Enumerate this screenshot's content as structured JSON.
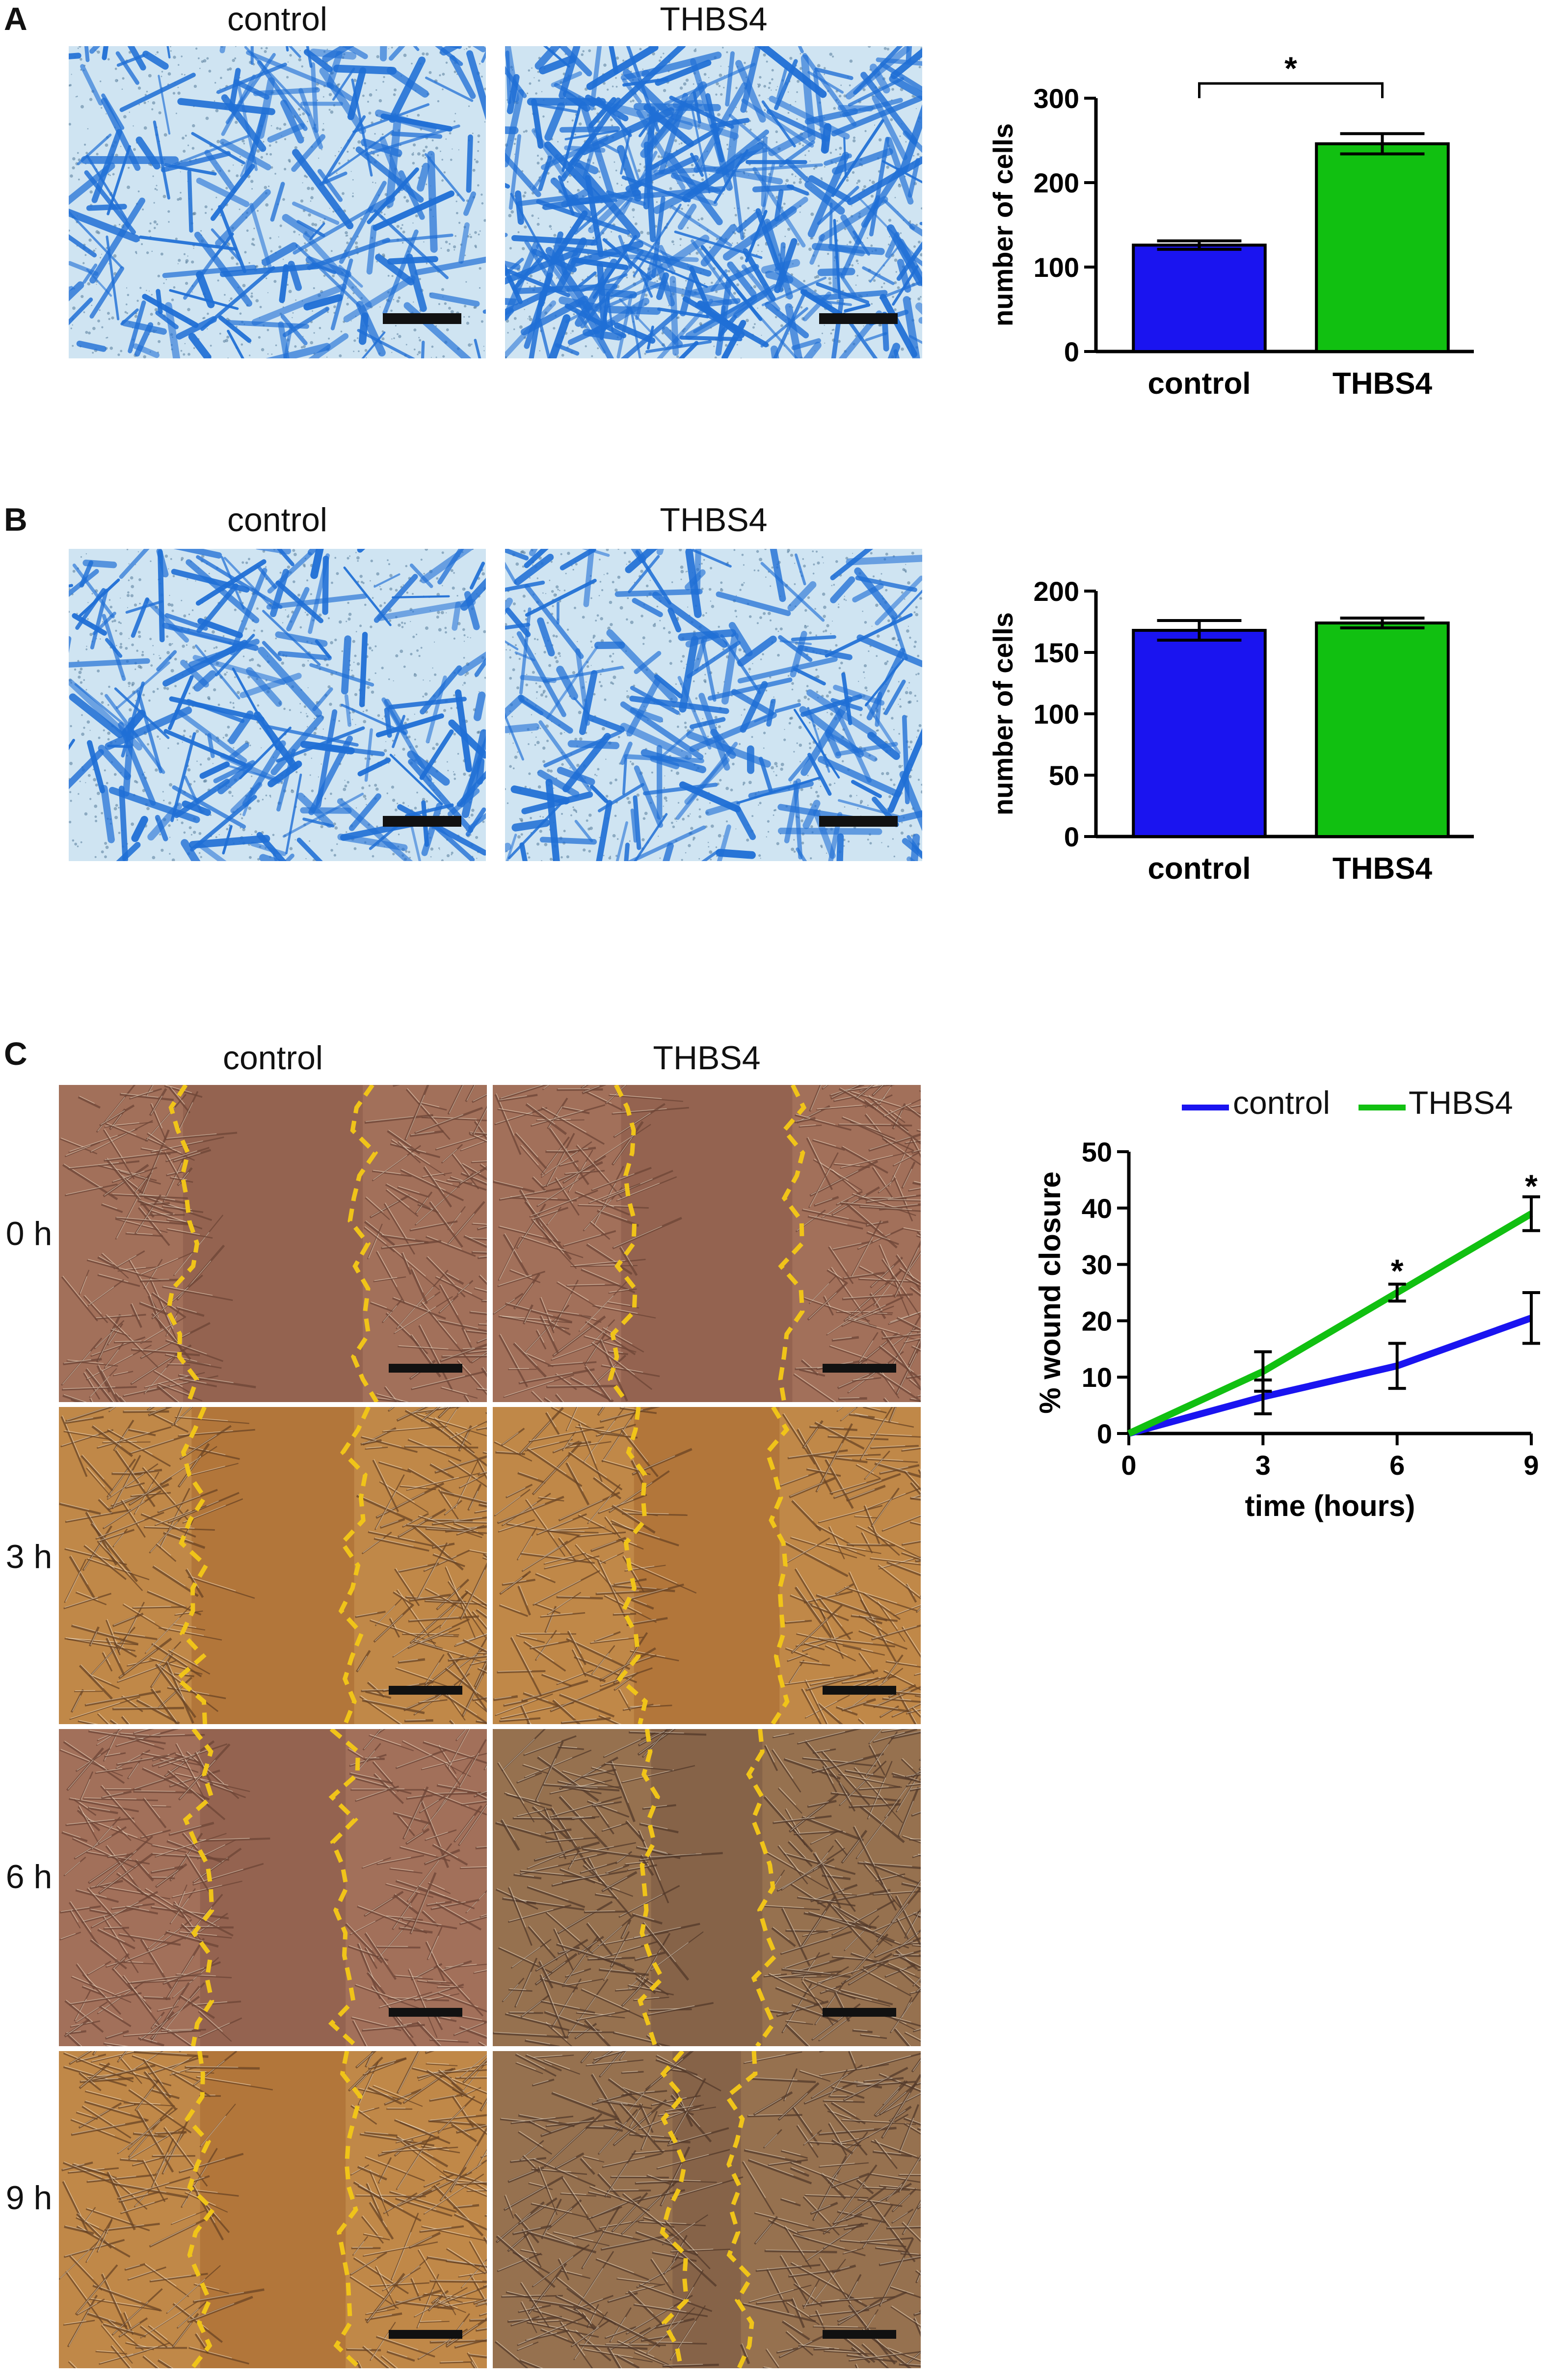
{
  "colors": {
    "control": "#1a14f0",
    "thbs4": "#11c011",
    "stain_blue": "#1f6fd6",
    "stain_bg": "#cfe4f2",
    "wound_line": "#f0c419",
    "brown_dark": "#6e4230",
    "brown_light": "#b4773e",
    "scale_bar": "#111111"
  },
  "panels": {
    "A": {
      "letter": "A",
      "image_titles": [
        "control",
        "THBS4"
      ],
      "chart_y_label": "number of cells"
    },
    "B": {
      "letter": "B",
      "image_titles": [
        "control",
        "THBS4"
      ],
      "chart_y_label": "number of cells"
    },
    "C": {
      "letter": "C",
      "image_titles": [
        "control",
        "THBS4"
      ],
      "row_labels": [
        "0 h",
        "3 h",
        "6 h",
        "9 h"
      ],
      "legend": [
        "control",
        "THBS4"
      ]
    }
  },
  "chart_data": [
    {
      "type": "bar",
      "panel": "A",
      "categories": [
        "control",
        "THBS4"
      ],
      "values": [
        126,
        246
      ],
      "errors": [
        5,
        12
      ],
      "ylabel": "number of cells",
      "ylim": [
        0,
        300
      ],
      "yticks": [
        0,
        100,
        200,
        300
      ],
      "significance": {
        "between": [
          "control",
          "THBS4"
        ],
        "label": "*"
      }
    },
    {
      "type": "bar",
      "panel": "B",
      "categories": [
        "control",
        "THBS4"
      ],
      "values": [
        168,
        174
      ],
      "errors": [
        8,
        4
      ],
      "ylabel": "number of cells",
      "ylim": [
        0,
        200
      ],
      "yticks": [
        0,
        50,
        100,
        150,
        200
      ]
    },
    {
      "type": "line",
      "panel": "C",
      "x": [
        0,
        3,
        6,
        9
      ],
      "xticks": [
        0,
        3,
        6,
        9
      ],
      "xlabel": "time (hours)",
      "ylabel": "% wound closure",
      "ylim": [
        0,
        50
      ],
      "yticks": [
        0,
        10,
        20,
        30,
        40,
        50
      ],
      "series": [
        {
          "name": "control",
          "values": [
            0,
            6.5,
            12,
            20.5
          ],
          "errors": [
            0,
            3,
            4,
            4.5
          ]
        },
        {
          "name": "THBS4",
          "values": [
            0,
            11,
            25,
            39
          ],
          "errors": [
            0,
            3.5,
            1.5,
            3
          ]
        }
      ],
      "annotations": [
        {
          "x": 6,
          "y": 29.5,
          "text": "*"
        },
        {
          "x": 9,
          "y": 44.5,
          "text": "*"
        }
      ]
    }
  ]
}
